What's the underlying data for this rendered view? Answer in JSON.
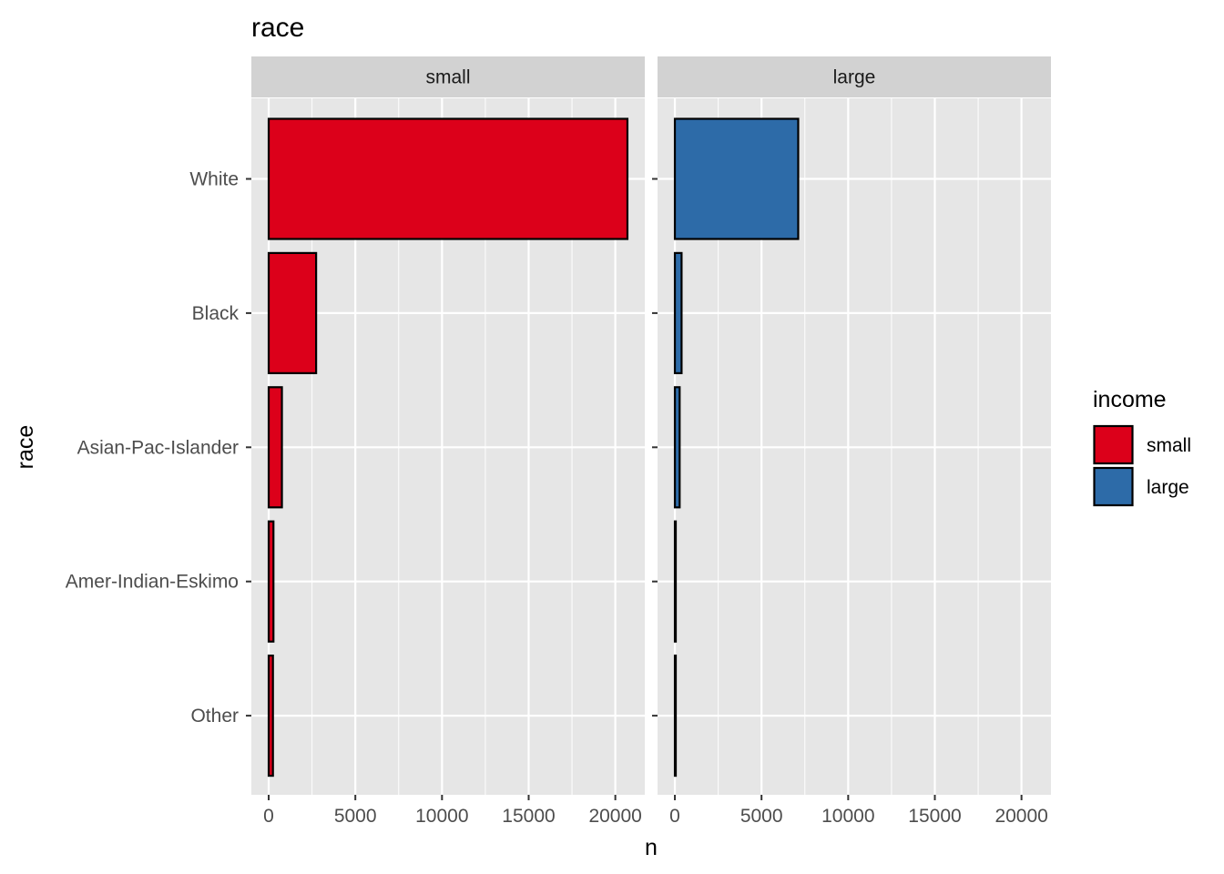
{
  "chart_data": {
    "type": "bar",
    "orientation": "horizontal",
    "title": "race",
    "xlabel": "n",
    "ylabel": "race",
    "categories": [
      "White",
      "Black",
      "Asian-Pac-Islander",
      "Amer-Indian-Eskimo",
      "Other"
    ],
    "facets": [
      {
        "label": "small",
        "series": "small",
        "values": [
          20699,
          2737,
          763,
          275,
          246
        ]
      },
      {
        "label": "large",
        "series": "large",
        "values": [
          7117,
          387,
          276,
          36,
          25
        ]
      }
    ],
    "xlim": [
      -1000,
      21700
    ],
    "xticks": [
      0,
      5000,
      10000,
      15000,
      20000
    ],
    "xtick_labels": [
      "0",
      "5000",
      "10000",
      "15000",
      "20000"
    ],
    "grid": true,
    "legend": {
      "title": "income",
      "position": "right",
      "items": [
        {
          "label": "small",
          "color": "#DC001A"
        },
        {
          "label": "large",
          "color": "#2D6BA8"
        }
      ]
    },
    "colors": {
      "small": "#DC001A",
      "large": "#2D6BA8",
      "bar_outline": "#000000",
      "panel_background": "#E6E6E6",
      "strip_background": "#D2D2D2",
      "grid": "#FFFFFF"
    }
  }
}
